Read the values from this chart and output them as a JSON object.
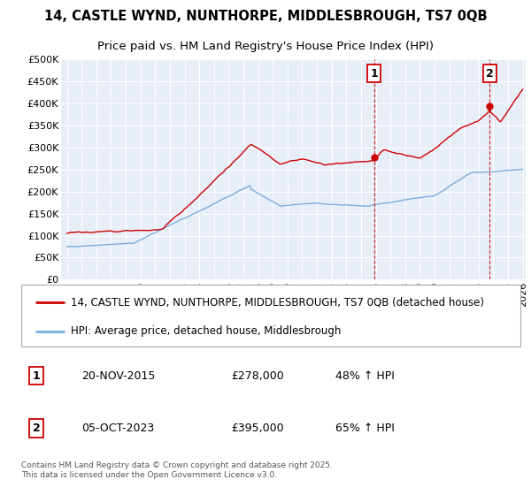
{
  "title": "14, CASTLE WYND, NUNTHORPE, MIDDLESBROUGH, TS7 0QB",
  "subtitle": "Price paid vs. HM Land Registry's House Price Index (HPI)",
  "ylim": [
    0,
    500000
  ],
  "yticks": [
    0,
    50000,
    100000,
    150000,
    200000,
    250000,
    300000,
    350000,
    400000,
    450000,
    500000
  ],
  "ytick_labels": [
    "£0",
    "£50K",
    "£100K",
    "£150K",
    "£200K",
    "£250K",
    "£300K",
    "£350K",
    "£400K",
    "£450K",
    "£500K"
  ],
  "xlim_start": 1994.6,
  "xlim_end": 2026.2,
  "property_color": "#cc0000",
  "hpi_color": "#7aaddc",
  "sale1_x": 2015.88,
  "sale1_y": 278000,
  "sale2_x": 2023.76,
  "sale2_y": 395000,
  "legend_property": "14, CASTLE WYND, NUNTHORPE, MIDDLESBROUGH, TS7 0QB (detached house)",
  "legend_hpi": "HPI: Average price, detached house, Middlesbrough",
  "annotation1_label": "1",
  "annotation2_label": "2",
  "sale1_date": "20-NOV-2015",
  "sale1_price": "£278,000",
  "sale1_hpi": "48% ↑ HPI",
  "sale2_date": "05-OCT-2023",
  "sale2_price": "£395,000",
  "sale2_hpi": "65% ↑ HPI",
  "copyright_text": "Contains HM Land Registry data © Crown copyright and database right 2025.\nThis data is licensed under the Open Government Licence v3.0.",
  "bg_color": "#e8eef8",
  "title_fontsize": 10.5,
  "subtitle_fontsize": 9.5,
  "tick_fontsize": 8,
  "legend_fontsize": 8.5,
  "ann_fontsize": 9,
  "copy_fontsize": 6.5
}
